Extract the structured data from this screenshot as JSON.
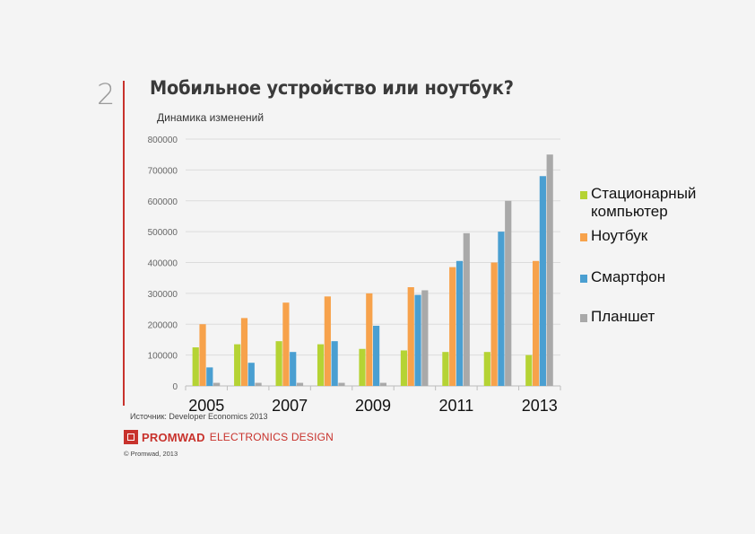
{
  "slide": {
    "number": "2",
    "title": "Мобильное устройство или ноутбук?",
    "subtitle": "Динамика изменений",
    "source": "Источник: Developer Economics 2013",
    "copyright": "© Promwad, 2013"
  },
  "logo": {
    "brand": "PROMWAD",
    "tagline": "ELECTRONICS DESIGN",
    "color": "#c8322c"
  },
  "chart_data": {
    "type": "bar",
    "title": "",
    "xlabel": "",
    "ylabel": "",
    "ylim": [
      0,
      800000
    ],
    "yticks": [
      0,
      100000,
      200000,
      300000,
      400000,
      500000,
      600000,
      700000,
      800000
    ],
    "categories": [
      "2005",
      "2006",
      "2007",
      "2008",
      "2009",
      "2010",
      "2011",
      "2012",
      "2013"
    ],
    "xtick_labels": [
      "2005",
      "",
      "2007",
      "",
      "2009",
      "",
      "2011",
      "",
      "2013"
    ],
    "grid": true,
    "legend_position": "right",
    "series": [
      {
        "name": "Стационарный компьютер",
        "color": "#b5d334",
        "values": [
          125000,
          135000,
          145000,
          135000,
          120000,
          115000,
          110000,
          110000,
          100000
        ]
      },
      {
        "name": "Ноутбук",
        "color": "#f7a24b",
        "values": [
          200000,
          220000,
          270000,
          290000,
          300000,
          320000,
          385000,
          400000,
          405000
        ]
      },
      {
        "name": "Смартфон",
        "color": "#4a9fd1",
        "values": [
          60000,
          75000,
          110000,
          145000,
          195000,
          295000,
          405000,
          500000,
          680000
        ]
      },
      {
        "name": "Планшет",
        "color": "#a9a9a9",
        "values": [
          10000,
          10000,
          10000,
          10000,
          10000,
          310000,
          495000,
          600000,
          750000
        ]
      }
    ]
  }
}
